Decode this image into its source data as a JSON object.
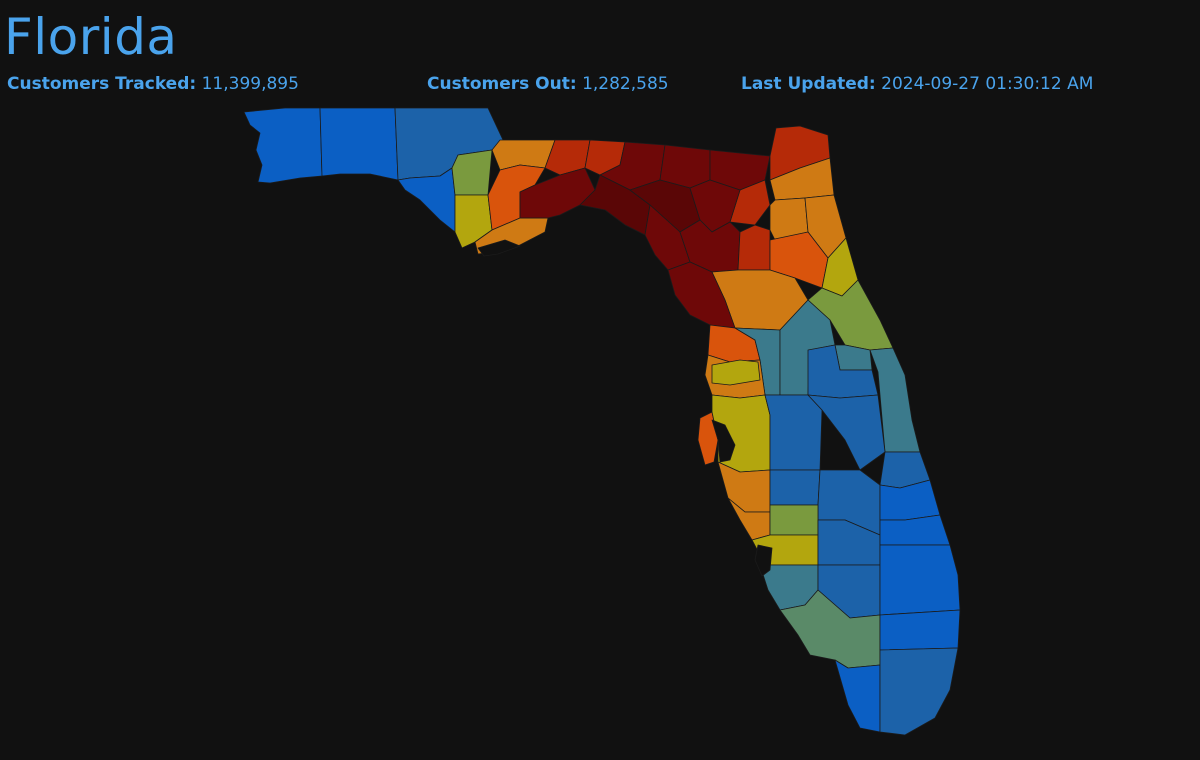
{
  "header": {
    "title": "Florida",
    "stats": [
      {
        "label": "Customers Tracked:",
        "value": "11,399,895"
      },
      {
        "label": "Customers Out:",
        "value": "1,282,585"
      },
      {
        "label": "Last Updated:",
        "value": "2024-09-27 01:30:12 AM"
      }
    ]
  },
  "map": {
    "region": "florida-counties",
    "colors": {
      "background": "#111111",
      "text_accent": "#4aa3ec",
      "lowest": "#0b5fc4",
      "low": "#1c62a9",
      "low_mid": "#3b7a8c",
      "mid_green": "#7a9a3e",
      "mid_yellow": "#b3a60e",
      "mid_orange": "#cf7a14",
      "high": "#d9540c",
      "higher": "#b52a08",
      "highest": "#6e0808"
    }
  }
}
